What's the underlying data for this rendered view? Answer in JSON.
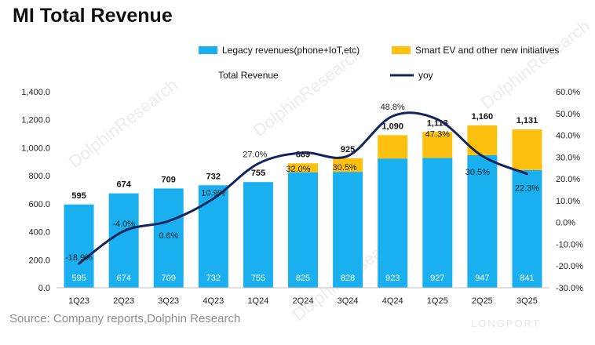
{
  "header": {
    "title": "MI Total Revenue"
  },
  "footer": {
    "source": "Source: Company reports,Dolphin Research",
    "brand": "LONGPORT"
  },
  "watermark": "DolphinResearch",
  "chart_data": {
    "type": "bar",
    "stacked": true,
    "title": "MI Total Revenue",
    "categories": [
      "1Q23",
      "2Q23",
      "3Q23",
      "4Q23",
      "1Q24",
      "2Q24",
      "3Q24",
      "4Q24",
      "1Q25",
      "2Q25",
      "3Q25"
    ],
    "series": [
      {
        "name": "Legacy revenues(phone+IoT,etc)",
        "color": "#1ab0ef",
        "values": [
          595,
          674,
          709,
          732,
          755,
          825,
          828,
          923,
          927,
          947,
          841
        ],
        "labels": [
          "595",
          "674",
          "709",
          "732",
          "755",
          "825",
          "828",
          "923",
          "927",
          "947",
          "841"
        ]
      },
      {
        "name": "Smart EV and other new initiatives",
        "color": "#fdc00e",
        "values": [
          0,
          0,
          0,
          0,
          0,
          64,
          97,
          167,
          186,
          213,
          290
        ]
      },
      {
        "name": "Total Revenue",
        "values": [
          595,
          674,
          709,
          732,
          755,
          889,
          925,
          1090,
          1113,
          1160,
          1131
        ],
        "labels": [
          "595",
          "674",
          "709",
          "732",
          "755",
          "889",
          "925",
          "1,090",
          "1,113",
          "1,160",
          "1,131"
        ]
      },
      {
        "name": "yoy",
        "type": "line",
        "axis": "right",
        "color": "#13255c",
        "values": [
          -18.9,
          -4.0,
          0.6,
          10.9,
          27.0,
          32.0,
          30.5,
          48.8,
          47.3,
          30.5,
          22.3
        ],
        "labels": [
          "-18.9%",
          "-4.0%",
          "0.6%",
          "10.9%",
          "27.0%",
          "32.0%",
          "30.5%",
          "48.8%",
          "47.3%",
          "30.5%",
          "22.3%"
        ]
      }
    ],
    "y_left": {
      "min": 0,
      "max": 1400,
      "ticks": [
        "0.0",
        "200.0",
        "400.0",
        "600.0",
        "800.0",
        "1,000.0",
        "1,200.0",
        "1,400.0"
      ]
    },
    "y_right": {
      "min": -30,
      "max": 60,
      "ticks": [
        "-30.0%",
        "-20.0%",
        "-10.0%",
        "0.0%",
        "10.0%",
        "20.0%",
        "30.0%",
        "40.0%",
        "50.0%",
        "60.0%"
      ]
    },
    "legend": [
      {
        "label": "Legacy revenues(phone+IoT,etc)",
        "marker": "box",
        "color": "#1ab0ef"
      },
      {
        "label": "Smart EV and other new initiatives",
        "marker": "box",
        "color": "#fdc00e"
      },
      {
        "label": "Total Revenue",
        "marker": "none",
        "color": ""
      },
      {
        "label": "yoy",
        "marker": "line",
        "color": "#13255c"
      }
    ],
    "legend_position": "top",
    "grid": false
  }
}
